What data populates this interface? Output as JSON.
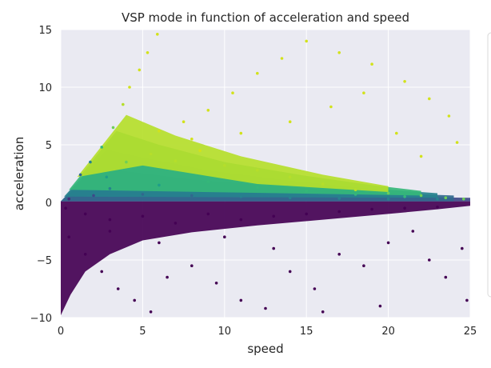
{
  "chart_data": {
    "type": "scatter",
    "title": "VSP mode in function of acceleration and speed",
    "xlabel": "speed",
    "ylabel": "acceleration",
    "xlim": [
      0,
      25
    ],
    "ylim": [
      -10,
      15
    ],
    "xticks": [
      "0",
      "5",
      "10",
      "15",
      "20",
      "25"
    ],
    "yticks": [
      "−10",
      "−5",
      "0",
      "5",
      "10",
      "15"
    ],
    "grid": true,
    "legend": "right (cropped, entries not visible)",
    "colormap": "viridis",
    "background_color": "#eaeaf2",
    "series": [
      {
        "description": "VSP mode encoded by color (viridis, low=purple, high=yellow)",
        "points": [
          [
            0.5,
            0.3,
            2
          ],
          [
            1.2,
            2.4,
            10
          ],
          [
            1.8,
            3.5,
            14
          ],
          [
            2.5,
            4.8,
            19
          ],
          [
            3.2,
            6.5,
            24
          ],
          [
            3.8,
            8.5,
            27
          ],
          [
            4.2,
            10.0,
            28
          ],
          [
            4.8,
            11.5,
            29
          ],
          [
            5.3,
            13.0,
            29
          ],
          [
            5.9,
            14.6,
            29
          ],
          [
            2.8,
            2.2,
            16
          ],
          [
            4.0,
            3.5,
            22
          ],
          [
            5.5,
            4.2,
            25
          ],
          [
            7.0,
            3.6,
            26
          ],
          [
            8.5,
            4.5,
            28
          ],
          [
            10.0,
            3.2,
            27
          ],
          [
            12.0,
            2.8,
            27
          ],
          [
            14.0,
            2.2,
            27
          ],
          [
            16.0,
            1.6,
            26
          ],
          [
            18.0,
            1.1,
            25
          ],
          [
            20.0,
            0.8,
            24
          ],
          [
            22.0,
            0.6,
            24
          ],
          [
            23.5,
            0.4,
            24
          ],
          [
            24.6,
            0.3,
            24
          ],
          [
            6.0,
            6.2,
            28
          ],
          [
            7.5,
            7.0,
            29
          ],
          [
            9.0,
            8.0,
            29
          ],
          [
            10.5,
            9.5,
            29
          ],
          [
            12.0,
            11.2,
            29
          ],
          [
            13.5,
            12.5,
            29
          ],
          [
            15.0,
            14.0,
            29
          ],
          [
            17.0,
            13.0,
            29
          ],
          [
            19.0,
            12.0,
            29
          ],
          [
            21.0,
            10.5,
            29
          ],
          [
            22.5,
            9.0,
            29
          ],
          [
            23.7,
            7.5,
            29
          ],
          [
            24.2,
            5.2,
            29
          ],
          [
            8.0,
            5.5,
            28
          ],
          [
            11.0,
            6.0,
            29
          ],
          [
            14.0,
            7.0,
            29
          ],
          [
            16.5,
            8.3,
            29
          ],
          [
            18.5,
            9.5,
            29
          ],
          [
            20.5,
            6.0,
            29
          ],
          [
            22.0,
            4.0,
            29
          ],
          [
            3.0,
            1.2,
            12
          ],
          [
            6.0,
            1.5,
            16
          ],
          [
            9.0,
            1.8,
            19
          ],
          [
            12.0,
            1.3,
            19
          ],
          [
            15.0,
            1.0,
            19
          ],
          [
            18.0,
            0.7,
            18
          ],
          [
            21.0,
            0.5,
            18
          ],
          [
            2.0,
            0.6,
            8
          ],
          [
            5.0,
            0.7,
            10
          ],
          [
            8.0,
            0.6,
            11
          ],
          [
            11.0,
            0.5,
            12
          ],
          [
            14.0,
            0.4,
            12
          ],
          [
            17.0,
            0.35,
            12
          ],
          [
            20.0,
            0.3,
            12
          ],
          [
            23.0,
            0.3,
            13
          ],
          [
            0.3,
            -0.5,
            0
          ],
          [
            1.5,
            -1.0,
            0
          ],
          [
            3.0,
            -1.5,
            0
          ],
          [
            5.0,
            -1.2,
            0
          ],
          [
            7.0,
            -1.8,
            0
          ],
          [
            9.0,
            -1.0,
            0
          ],
          [
            11.0,
            -1.5,
            0
          ],
          [
            13.0,
            -1.2,
            0
          ],
          [
            15.0,
            -1.0,
            0
          ],
          [
            17.0,
            -0.8,
            0
          ],
          [
            19.0,
            -0.6,
            0
          ],
          [
            21.0,
            -0.5,
            0
          ],
          [
            23.0,
            -0.4,
            0
          ],
          [
            0.5,
            -3.0,
            0
          ],
          [
            1.5,
            -4.5,
            0
          ],
          [
            2.5,
            -6.0,
            0
          ],
          [
            3.5,
            -7.5,
            0
          ],
          [
            4.5,
            -8.5,
            0
          ],
          [
            5.5,
            -9.5,
            0
          ],
          [
            6.5,
            -6.5,
            0
          ],
          [
            8.0,
            -5.5,
            0
          ],
          [
            9.5,
            -7.0,
            0
          ],
          [
            11.0,
            -8.5,
            0
          ],
          [
            12.5,
            -9.2,
            0
          ],
          [
            14.0,
            -6.0,
            0
          ],
          [
            15.5,
            -7.5,
            0
          ],
          [
            17.0,
            -4.5,
            0
          ],
          [
            18.5,
            -5.5,
            0
          ],
          [
            20.0,
            -3.5,
            0
          ],
          [
            21.5,
            -2.5,
            0
          ],
          [
            22.5,
            -5.0,
            0
          ],
          [
            23.5,
            -6.5,
            0
          ],
          [
            24.5,
            -4.0,
            0
          ],
          [
            24.8,
            -8.5,
            0
          ],
          [
            19.5,
            -9.0,
            0
          ],
          [
            16.0,
            -9.5,
            0
          ],
          [
            10.0,
            -3.0,
            0
          ],
          [
            6.0,
            -3.5,
            0
          ],
          [
            3.0,
            -2.5,
            0
          ],
          [
            13.0,
            -4.0,
            0
          ]
        ]
      }
    ]
  }
}
